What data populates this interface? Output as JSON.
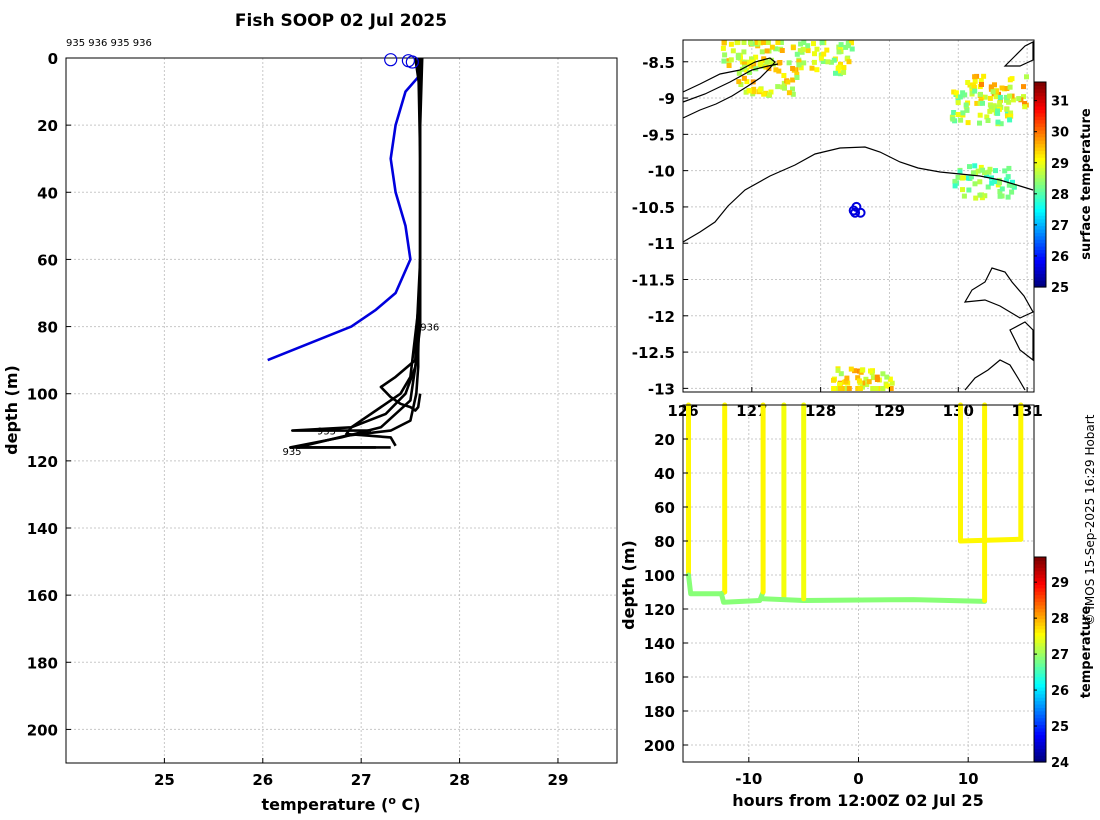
{
  "chart_data": [
    {
      "type": "line",
      "title": "Fish SOOP 02 Jul 2025",
      "xlabel": "temperature (",
      "xlabel_sup": "o",
      "xlabel_unit": " C)",
      "ylabel": "depth (m)",
      "xlim": [
        24,
        29.6
      ],
      "ylim": [
        0,
        210
      ],
      "xticks": [
        "25",
        "26",
        "27",
        "28",
        "29"
      ],
      "yticks": [
        "0",
        "20",
        "40",
        "60",
        "80",
        "100",
        "120",
        "140",
        "160",
        "180",
        "200"
      ],
      "top_labels": "935 936 935 936",
      "annotations": [
        {
          "text": "936",
          "x": 27.6,
          "y": 80
        },
        {
          "text": "935",
          "x": 26.55,
          "y": 111
        },
        {
          "text": "935",
          "x": 26.2,
          "y": 117
        }
      ],
      "series": [
        {
          "name": "blue",
          "color": "#0000dd",
          "x": [
            27.6,
            27.45,
            27.35,
            27.3,
            27.35,
            27.45,
            27.5,
            27.35,
            27.15,
            26.9,
            26.05
          ],
          "y": [
            5,
            10,
            20,
            30,
            40,
            50,
            60,
            70,
            75,
            80,
            90
          ]
        },
        {
          "name": "black1",
          "color": "#000000",
          "x": [
            27.62,
            27.6,
            27.6,
            27.58,
            27.58,
            27.56,
            27.5,
            27.3,
            26.85,
            26.35,
            27.15
          ],
          "y": [
            0,
            20,
            60,
            88,
            92,
            100,
            108,
            111,
            112.5,
            116,
            116
          ]
        },
        {
          "name": "black2",
          "color": "#000000",
          "x": [
            27.55,
            27.6,
            27.6,
            27.58,
            27.55,
            27.5,
            27.2,
            26.8,
            26.28,
            27.3
          ],
          "y": [
            0,
            10,
            60,
            86,
            92,
            102,
            110,
            113,
            116,
            116
          ]
        },
        {
          "name": "black3",
          "color": "#000000",
          "x": [
            27.58,
            27.6,
            27.6,
            27.55,
            27.45,
            27.25,
            26.9,
            26.3,
            27.1
          ],
          "y": [
            0,
            30,
            80,
            92,
            100,
            106,
            110,
            111,
            111
          ]
        },
        {
          "name": "black4",
          "color": "#000000",
          "x": [
            27.6,
            27.6,
            27.55,
            27.35,
            27.2,
            27.3,
            27.4,
            27.5,
            27.55,
            27.58,
            27.6
          ],
          "y": [
            0,
            60,
            90,
            95,
            98,
            101,
            103,
            104,
            105,
            104,
            100
          ]
        },
        {
          "name": "black5",
          "color": "#000000",
          "x": [
            27.6,
            27.6,
            27.5,
            27.4,
            27.0,
            26.9,
            26.85,
            27.3,
            27.35
          ],
          "y": [
            0,
            70,
            95,
            100,
            108,
            110,
            112,
            113,
            115.5
          ]
        }
      ],
      "markers": [
        {
          "x": 27.3,
          "y": 0.5,
          "color": "#0000dd"
        },
        {
          "x": 27.48,
          "y": 0.8,
          "color": "#0000dd"
        },
        {
          "x": 27.52,
          "y": 1.2,
          "color": "#0000dd"
        }
      ]
    },
    {
      "type": "heatmap",
      "xlim": [
        126,
        131.1
      ],
      "ylim": [
        -13.05,
        -8.2
      ],
      "xticks": [
        "126",
        "127",
        "128",
        "129",
        "130",
        "131"
      ],
      "yticks": [
        "-8.5",
        "-9",
        "-9.5",
        "-10",
        "-10.5",
        "-11",
        "-11.5",
        "-12",
        "-12.5",
        "-13"
      ],
      "colorbar_label": "surface temperature",
      "colorbar_ticks": [
        "25",
        "26",
        "27",
        "28",
        "29",
        "30",
        "31"
      ],
      "colorbar_range": [
        25,
        31.6
      ],
      "positions": [
        {
          "lon": 128.48,
          "lat": -10.55
        },
        {
          "lon": 128.52,
          "lat": -10.5
        },
        {
          "lon": 128.58,
          "lat": -10.58
        },
        {
          "lon": 128.5,
          "lat": -10.58
        }
      ],
      "patches": [
        {
          "lon": 128.58,
          "lat": -12.92,
          "temp": 29.2
        },
        {
          "lon": 130.35,
          "lat": -10.12,
          "temp": 28.4
        },
        {
          "lon": 130.52,
          "lat": -8.9,
          "temp": 29.3
        },
        {
          "lon": 128.0,
          "lat": -8.4,
          "temp": 28.8
        },
        {
          "lon": 126.98,
          "lat": -8.32,
          "temp": 29.0
        },
        {
          "lon": 127.2,
          "lat": -8.7,
          "temp": 29.1
        },
        {
          "lon": 130.3,
          "lat": -9.1,
          "temp": 28.6
        }
      ]
    },
    {
      "type": "scatter",
      "xlabel": "hours from 12:00Z 02 Jul 25",
      "ylabel": "depth (m)",
      "xlim": [
        -16,
        16
      ],
      "ylim": [
        0,
        210
      ],
      "xticks": [
        "-10",
        "0",
        "10"
      ],
      "yticks": [
        "20",
        "40",
        "60",
        "80",
        "100",
        "120",
        "140",
        "160",
        "180",
        "200"
      ],
      "colorbar_label": "temperature",
      "colorbar_ticks": [
        "24",
        "25",
        "26",
        "27",
        "28",
        "29"
      ],
      "colorbar_range": [
        24,
        29.7
      ],
      "tracks": [
        {
          "x": [
            -15.5,
            -15.5
          ],
          "y": [
            0,
            100
          ],
          "temp": 27.6
        },
        {
          "x": [
            -15.5,
            -15.3,
            -12.5,
            -12.2
          ],
          "y": [
            100,
            111,
            111,
            110
          ],
          "temp": 26.9
        },
        {
          "x": [
            -12.2,
            -12.2
          ],
          "y": [
            110,
            0
          ],
          "temp": 27.6
        },
        {
          "x": [
            -12.5,
            -12.3,
            -9.0,
            -8.7
          ],
          "y": [
            111,
            116,
            115,
            110
          ],
          "temp": 26.9
        },
        {
          "x": [
            -8.7,
            -8.7
          ],
          "y": [
            110,
            0
          ],
          "temp": 27.6
        },
        {
          "x": [
            -6.8,
            -6.8
          ],
          "y": [
            0,
            114
          ],
          "temp": 27.5
        },
        {
          "x": [
            -8.7,
            -5.0,
            5.0,
            11.5
          ],
          "y": [
            114,
            115,
            114.5,
            115.5
          ],
          "temp": 26.9
        },
        {
          "x": [
            -5.0,
            -5.0
          ],
          "y": [
            0,
            114
          ],
          "temp": 27.5
        },
        {
          "x": [
            9.3,
            9.3
          ],
          "y": [
            0,
            80
          ],
          "temp": 27.6
        },
        {
          "x": [
            9.3,
            14.8
          ],
          "y": [
            80,
            79
          ],
          "temp": 27.6
        },
        {
          "x": [
            11.5,
            11.5
          ],
          "y": [
            0,
            115
          ],
          "temp": 27.6
        },
        {
          "x": [
            14.8,
            14.8
          ],
          "y": [
            0,
            79
          ],
          "temp": 27.6
        }
      ]
    }
  ],
  "credit": "© IMOS 15-Sep-2025 16:29 Hobart"
}
